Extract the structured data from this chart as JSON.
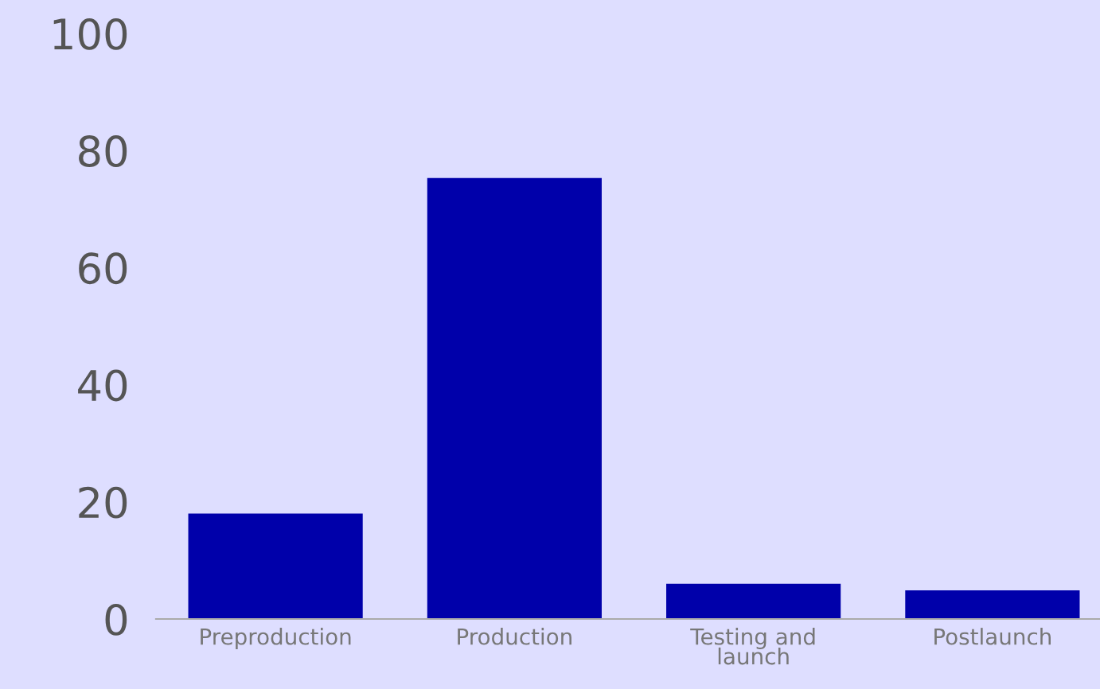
{
  "chart_data": {
    "type": "bar",
    "categories": [
      "Preproduction",
      "Production",
      "Testing and\nlaunch",
      "Postlaunch"
    ],
    "values": [
      18.0,
      75.3,
      6.0,
      4.9
    ],
    "color": "#0000aa",
    "ylim": [
      0,
      100
    ],
    "yticks": [
      0,
      20,
      40,
      60,
      80,
      100
    ],
    "grid": false,
    "legend": false
  }
}
